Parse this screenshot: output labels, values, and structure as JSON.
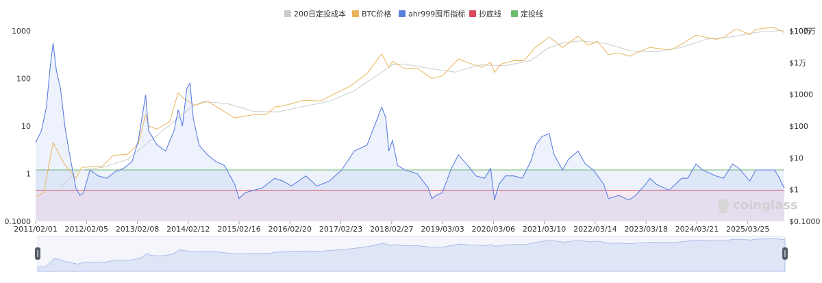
{
  "legend": [
    {
      "label": "200日定投成本",
      "color": "#cccccc"
    },
    {
      "label": "BTC价格",
      "color": "#e8b45a"
    },
    {
      "label": "ahr999囤币指标",
      "color": "#5b7fe0"
    },
    {
      "label": "抄底线",
      "color": "#d94a5c"
    },
    {
      "label": "定投线",
      "color": "#6dbb6d"
    }
  ],
  "watermark": "coinglass",
  "chart_data": {
    "type": "line",
    "x_axis": {
      "type": "date",
      "ticks": [
        "2011/02/01",
        "2012/02/05",
        "2013/02/08",
        "2014/02/12",
        "2015/02/16",
        "2016/02/20",
        "2017/02/23",
        "2018/02/27",
        "2019/03/03",
        "2020/03/06",
        "2021/03/10",
        "2022/03/14",
        "2023/03/18",
        "2024/03/21",
        "2025/03/25"
      ],
      "range": [
        "2011/02/01",
        "2025/12/15"
      ]
    },
    "y_axis_left": {
      "scale": "log",
      "range": [
        0.1,
        1000
      ],
      "ticks": [
        "0.1000",
        "1",
        "10",
        "100",
        "1000"
      ]
    },
    "y_axis_right": {
      "scale": "log",
      "range": [
        0.1,
        100000
      ],
      "ticks": [
        "$0.1000",
        "$1",
        "$10",
        "$100",
        "$1000",
        "$1万",
        "$10万",
        "$100万"
      ],
      "tick_values": [
        0.1,
        1,
        10,
        100,
        1000,
        10000,
        100000,
        1000000
      ]
    },
    "reference_lines": [
      {
        "name": "抄底线",
        "value": 0.45,
        "axis": "left",
        "color": "#d94a5c"
      },
      {
        "name": "定投线",
        "value": 1.2,
        "axis": "left",
        "color": "#6dbb6d"
      }
    ],
    "series": [
      {
        "name": "ahr999囤币指标",
        "axis": "left",
        "color": "#5b7fe0",
        "fill": true,
        "points": [
          [
            "2011/02/01",
            4.5
          ],
          [
            "2011/03/15",
            8
          ],
          [
            "2011/04/20",
            25
          ],
          [
            "2011/05/20",
            200
          ],
          [
            "2011/06/08",
            550
          ],
          [
            "2011/07/01",
            150
          ],
          [
            "2011/08/01",
            60
          ],
          [
            "2011/09/01",
            10
          ],
          [
            "2011/10/01",
            3
          ],
          [
            "2011/11/20",
            0.5
          ],
          [
            "2011/12/20",
            0.35
          ],
          [
            "2012/01/15",
            0.4
          ],
          [
            "2012/03/01",
            1.2
          ],
          [
            "2012/05/01",
            0.9
          ],
          [
            "2012/07/01",
            0.8
          ],
          [
            "2012/09/01",
            1.1
          ],
          [
            "2012/11/01",
            1.3
          ],
          [
            "2013/01/01",
            1.8
          ],
          [
            "2013/02/15",
            5
          ],
          [
            "2013/04/09",
            45
          ],
          [
            "2013/05/01",
            8
          ],
          [
            "2013/07/01",
            4
          ],
          [
            "2013/09/01",
            3
          ],
          [
            "2013/11/01",
            8
          ],
          [
            "2013/12/01",
            22
          ],
          [
            "2014/01/01",
            10
          ],
          [
            "2014/02/01",
            60
          ],
          [
            "2014/02/25",
            80
          ],
          [
            "2014/03/20",
            15
          ],
          [
            "2014/05/01",
            4
          ],
          [
            "2014/07/01",
            2.5
          ],
          [
            "2014/09/01",
            1.8
          ],
          [
            "2014/11/01",
            1.5
          ],
          [
            "2015/01/15",
            0.6
          ],
          [
            "2015/02/16",
            0.3
          ],
          [
            "2015/04/01",
            0.4
          ],
          [
            "2015/06/01",
            0.45
          ],
          [
            "2015/08/01",
            0.5
          ],
          [
            "2015/11/01",
            0.8
          ],
          [
            "2016/01/01",
            0.7
          ],
          [
            "2016/03/01",
            0.55
          ],
          [
            "2016/06/15",
            0.9
          ],
          [
            "2016/09/01",
            0.55
          ],
          [
            "2016/12/01",
            0.7
          ],
          [
            "2017/03/01",
            1.2
          ],
          [
            "2017/06/01",
            3
          ],
          [
            "2017/09/01",
            4
          ],
          [
            "2017/12/17",
            25
          ],
          [
            "2018/01/15",
            15
          ],
          [
            "2018/02/06",
            3
          ],
          [
            "2018/03/05",
            5
          ],
          [
            "2018/04/10",
            1.5
          ],
          [
            "2018/06/01",
            1.2
          ],
          [
            "2018/09/01",
            1
          ],
          [
            "2018/11/20",
            0.5
          ],
          [
            "2018/12/15",
            0.3
          ],
          [
            "2019/01/15",
            0.35
          ],
          [
            "2019/03/01",
            0.4
          ],
          [
            "2019/05/01",
            1.2
          ],
          [
            "2019/06/26",
            2.5
          ],
          [
            "2019/09/01",
            1.5
          ],
          [
            "2019/11/01",
            0.9
          ],
          [
            "2020/01/01",
            0.8
          ],
          [
            "2020/02/15",
            1.3
          ],
          [
            "2020/03/13",
            0.28
          ],
          [
            "2020/04/15",
            0.6
          ],
          [
            "2020/06/01",
            0.9
          ],
          [
            "2020/08/01",
            0.9
          ],
          [
            "2020/10/01",
            0.8
          ],
          [
            "2020/12/01",
            1.8
          ],
          [
            "2021/01/08",
            4
          ],
          [
            "2021/02/20",
            6
          ],
          [
            "2021/04/14",
            7
          ],
          [
            "2021/05/20",
            2.5
          ],
          [
            "2021/07/20",
            1.2
          ],
          [
            "2021/09/01",
            2
          ],
          [
            "2021/11/10",
            3
          ],
          [
            "2022/01/01",
            1.6
          ],
          [
            "2022/03/01",
            1.2
          ],
          [
            "2022/05/15",
            0.6
          ],
          [
            "2022/06/18",
            0.3
          ],
          [
            "2022/09/01",
            0.35
          ],
          [
            "2022/11/15",
            0.28
          ],
          [
            "2023/01/01",
            0.35
          ],
          [
            "2023/03/15",
            0.6
          ],
          [
            "2023/04/15",
            0.8
          ],
          [
            "2023/06/01",
            0.6
          ],
          [
            "2023/09/01",
            0.45
          ],
          [
            "2023/12/01",
            0.8
          ],
          [
            "2024/01/15",
            0.8
          ],
          [
            "2024/03/14",
            1.6
          ],
          [
            "2024/05/01",
            1.2
          ],
          [
            "2024/08/05",
            0.9
          ],
          [
            "2024/10/01",
            0.8
          ],
          [
            "2024/12/05",
            1.6
          ],
          [
            "2025/01/20",
            1.3
          ],
          [
            "2025/04/08",
            0.7
          ],
          [
            "2025/05/22",
            1.2
          ],
          [
            "2025/08/14",
            1.2
          ],
          [
            "2025/10/06",
            1.2
          ],
          [
            "2025/11/01",
            0.9
          ],
          [
            "2025/12/15",
            0.5
          ]
        ]
      },
      {
        "name": "BTC价格",
        "axis": "right",
        "color": "#e8b45a",
        "points": [
          [
            "2011/02/01",
            0.6
          ],
          [
            "2011/04/01",
            0.8
          ],
          [
            "2011/06/08",
            30
          ],
          [
            "2011/09/01",
            6
          ],
          [
            "2011/11/20",
            2.3
          ],
          [
            "2012/01/01",
            5
          ],
          [
            "2012/06/01",
            5.5
          ],
          [
            "2012/08/15",
            12
          ],
          [
            "2012/12/01",
            13
          ],
          [
            "2013/02/15",
            28
          ],
          [
            "2013/04/09",
            230
          ],
          [
            "2013/05/01",
            100
          ],
          [
            "2013/07/01",
            80
          ],
          [
            "2013/10/01",
            140
          ],
          [
            "2013/11/30",
            1100
          ],
          [
            "2014/01/01",
            800
          ],
          [
            "2014/04/01",
            450
          ],
          [
            "2014/07/01",
            600
          ],
          [
            "2014/10/01",
            350
          ],
          [
            "2015/01/14",
            180
          ],
          [
            "2015/06/01",
            230
          ],
          [
            "2015/09/01",
            230
          ],
          [
            "2015/11/04",
            400
          ],
          [
            "2016/01/01",
            430
          ],
          [
            "2016/06/01",
            650
          ],
          [
            "2016/10/01",
            620
          ],
          [
            "2017/01/01",
            1000
          ],
          [
            "2017/05/01",
            1800
          ],
          [
            "2017/09/01",
            4500
          ],
          [
            "2017/12/17",
            19000
          ],
          [
            "2018/02/06",
            7000
          ],
          [
            "2018/03/05",
            11000
          ],
          [
            "2018/06/01",
            6500
          ],
          [
            "2018/09/01",
            6500
          ],
          [
            "2018/12/15",
            3200
          ],
          [
            "2019/03/01",
            3800
          ],
          [
            "2019/06/26",
            13000
          ],
          [
            "2019/09/01",
            10000
          ],
          [
            "2019/12/15",
            7100
          ],
          [
            "2020/02/15",
            10300
          ],
          [
            "2020/03/13",
            4900
          ],
          [
            "2020/05/01",
            9000
          ],
          [
            "2020/08/01",
            11500
          ],
          [
            "2020/10/15",
            11500
          ],
          [
            "2020/12/31",
            29000
          ],
          [
            "2021/04/14",
            64000
          ],
          [
            "2021/07/20",
            30000
          ],
          [
            "2021/11/10",
            68000
          ],
          [
            "2022/01/24",
            35000
          ],
          [
            "2022/03/29",
            47000
          ],
          [
            "2022/06/18",
            18000
          ],
          [
            "2022/09/01",
            20000
          ],
          [
            "2022/11/21",
            15800
          ],
          [
            "2023/01/15",
            21000
          ],
          [
            "2023/04/15",
            30000
          ],
          [
            "2023/09/11",
            25000
          ],
          [
            "2023/12/01",
            38000
          ],
          [
            "2024/03/14",
            73000
          ],
          [
            "2024/08/05",
            54000
          ],
          [
            "2024/10/01",
            62000
          ],
          [
            "2024/12/17",
            107000
          ],
          [
            "2025/01/20",
            108000
          ],
          [
            "2025/04/08",
            76000
          ],
          [
            "2025/05/22",
            111000
          ],
          [
            "2025/08/14",
            123000
          ],
          [
            "2025/10/06",
            125000
          ],
          [
            "2025/11/01",
            110000
          ],
          [
            "2025/12/15",
            88000
          ]
        ]
      },
      {
        "name": "200日定投成本",
        "axis": "right",
        "color": "#cccccc",
        "points": [
          [
            "2011/08/01",
            1.2
          ],
          [
            "2011/12/01",
            4
          ],
          [
            "2012/06/01",
            5
          ],
          [
            "2012/12/01",
            9
          ],
          [
            "2013/06/01",
            40
          ],
          [
            "2013/12/01",
            180
          ],
          [
            "2014/03/01",
            380
          ],
          [
            "2014/06/01",
            600
          ],
          [
            "2014/12/01",
            500
          ],
          [
            "2015/06/01",
            290
          ],
          [
            "2015/12/01",
            280
          ],
          [
            "2016/06/01",
            420
          ],
          [
            "2016/12/01",
            600
          ],
          [
            "2017/06/01",
            1300
          ],
          [
            "2017/12/01",
            4500
          ],
          [
            "2018/03/01",
            8500
          ],
          [
            "2018/06/01",
            9000
          ],
          [
            "2018/12/01",
            6500
          ],
          [
            "2019/06/01",
            5000
          ],
          [
            "2019/12/01",
            8500
          ],
          [
            "2020/06/01",
            8000
          ],
          [
            "2020/12/01",
            11500
          ],
          [
            "2021/04/01",
            28000
          ],
          [
            "2021/08/01",
            43000
          ],
          [
            "2021/12/01",
            48000
          ],
          [
            "2022/06/01",
            40000
          ],
          [
            "2022/12/01",
            23000
          ],
          [
            "2023/06/01",
            22000
          ],
          [
            "2023/12/01",
            30000
          ],
          [
            "2024/06/01",
            55000
          ],
          [
            "2024/12/01",
            65000
          ],
          [
            "2025/06/01",
            90000
          ],
          [
            "2025/12/15",
            105000
          ]
        ]
      }
    ]
  }
}
